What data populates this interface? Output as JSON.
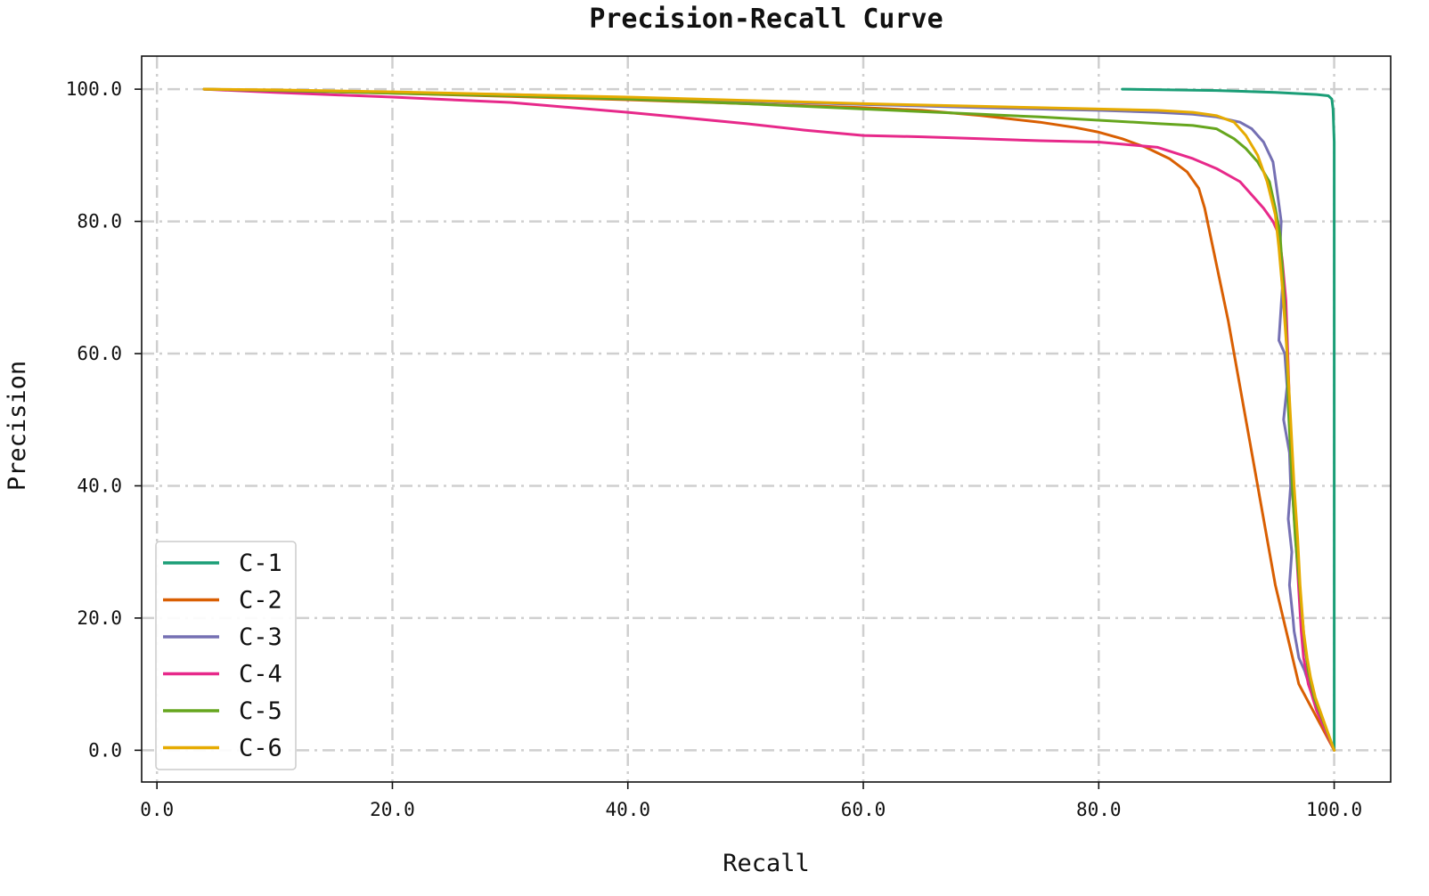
{
  "chart_data": {
    "type": "line",
    "title": "Precision-Recall Curve",
    "xlabel": "Recall",
    "ylabel": "Precision",
    "xlim": [
      -1.3,
      104.8
    ],
    "ylim": [
      -4.8,
      105
    ],
    "xticks": [
      0,
      20,
      40,
      60,
      80,
      100
    ],
    "yticks": [
      0,
      20,
      40,
      60,
      80,
      100
    ],
    "xtick_labels": [
      "0.0",
      "20.0",
      "40.0",
      "60.0",
      "80.0",
      "100.0"
    ],
    "ytick_labels": [
      "0.0",
      "20.0",
      "40.0",
      "60.0",
      "80.0",
      "100.0"
    ],
    "grid": true,
    "legend_position": "lower-left",
    "series": [
      {
        "name": "C-1",
        "color": "#1b9e77",
        "x": [
          82,
          90,
          95,
          98.5,
          99.5,
          99.8,
          99.9,
          100,
          100,
          100
        ],
        "y": [
          100,
          99.8,
          99.5,
          99.2,
          99,
          98.5,
          97,
          92,
          50,
          0
        ]
      },
      {
        "name": "C-2",
        "color": "#d95f02",
        "x": [
          4,
          10,
          20,
          30,
          40,
          50,
          60,
          65,
          70,
          75,
          78,
          80,
          82,
          84,
          86,
          87.5,
          88.5,
          89,
          91,
          93,
          95,
          97,
          100
        ],
        "y": [
          100,
          99.8,
          99.4,
          98.9,
          98.4,
          97.8,
          97.2,
          96.8,
          96,
          95,
          94.2,
          93.5,
          92.5,
          91.2,
          89.5,
          87.5,
          85,
          82,
          65,
          45,
          25,
          10,
          0
        ]
      },
      {
        "name": "C-3",
        "color": "#7570b3",
        "x": [
          4,
          10,
          20,
          30,
          40,
          50,
          60,
          70,
          80,
          85,
          88,
          90,
          92,
          93,
          94,
          94.8,
          95.2,
          95.5,
          95.4,
          95.6,
          95.3,
          95.8,
          96,
          95.7,
          96.2,
          96.3,
          96.1,
          96.4,
          96.2,
          96.5,
          96.6,
          96.8,
          97,
          97.5,
          98.2,
          100
        ],
        "y": [
          100,
          99.8,
          99.5,
          99.2,
          98.7,
          98.2,
          97.7,
          97.2,
          96.8,
          96.5,
          96.2,
          95.8,
          95,
          94,
          92,
          89,
          84,
          80,
          76,
          70,
          62,
          60,
          55,
          50,
          45,
          40,
          35,
          30,
          25,
          20,
          18,
          16,
          14,
          12,
          8,
          0
        ]
      },
      {
        "name": "C-4",
        "color": "#e7298a",
        "x": [
          4,
          10,
          20,
          30,
          40,
          50,
          55,
          60,
          65,
          70,
          75,
          80,
          85,
          88,
          90,
          92,
          93,
          94,
          94.8,
          95.3,
          95.6,
          95.9,
          96.1,
          96.3,
          96.5,
          96.8,
          97,
          97.2,
          97.4,
          97.6,
          97.8,
          98,
          98.5,
          100
        ],
        "y": [
          100,
          99.5,
          98.8,
          98,
          96.5,
          94.8,
          93.8,
          93,
          92.8,
          92.5,
          92.2,
          92,
          91.2,
          89.5,
          88,
          86,
          84,
          82,
          80,
          78,
          74,
          68,
          58,
          47,
          38,
          30,
          24,
          18,
          14,
          12,
          10,
          9,
          6,
          0
        ]
      },
      {
        "name": "C-5",
        "color": "#66a61e",
        "x": [
          4,
          10,
          20,
          30,
          40,
          50,
          60,
          70,
          75,
          80,
          85,
          88,
          90,
          91.5,
          92.5,
          93.5,
          94.5,
          95,
          95.4,
          95.6,
          95.8,
          96,
          96.1,
          96.3,
          96.5,
          96.7,
          96.9,
          97.1,
          97.3,
          97.5,
          97.8,
          98.3,
          100
        ],
        "y": [
          100,
          99.8,
          99.4,
          99,
          98.5,
          97.8,
          97,
          96.2,
          95.8,
          95.3,
          94.8,
          94.5,
          94,
          92.5,
          91,
          89,
          86,
          82,
          78,
          73,
          67,
          60,
          52,
          45,
          38,
          32,
          28,
          24,
          20,
          16,
          12,
          8,
          0
        ]
      },
      {
        "name": "C-6",
        "color": "#e6ab02",
        "x": [
          4,
          10,
          20,
          30,
          40,
          50,
          60,
          70,
          75,
          80,
          85,
          88,
          90,
          91.5,
          92.5,
          93.5,
          94.3,
          95,
          95.3,
          95.6,
          96,
          96.3,
          96.6,
          96.9,
          97.1,
          97.4,
          97.7,
          98,
          98.4,
          100
        ],
        "y": [
          100,
          99.9,
          99.6,
          99.2,
          98.8,
          98.3,
          97.8,
          97.4,
          97.2,
          97,
          96.8,
          96.5,
          96,
          95,
          93,
          90,
          86,
          81,
          76,
          70,
          60,
          50,
          40,
          32,
          25,
          18,
          14,
          11,
          8,
          0
        ]
      }
    ]
  }
}
